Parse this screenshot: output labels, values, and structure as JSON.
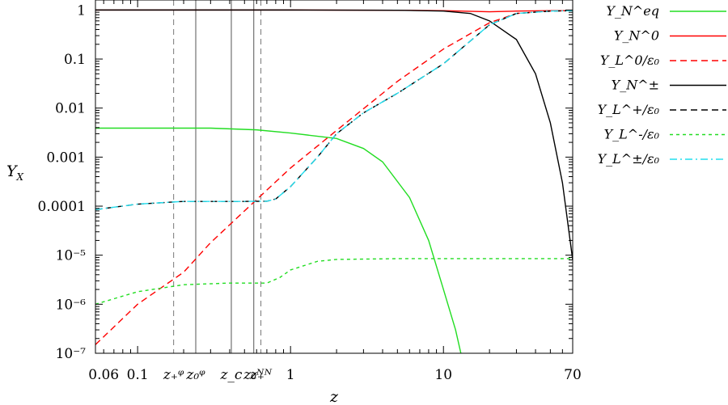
{
  "chart_data": {
    "type": "line",
    "xlabel": "z",
    "ylabel": "Y_X",
    "x_scale": "log",
    "y_scale": "log",
    "xlim": [
      0.053,
      70
    ],
    "ylim": [
      1e-07,
      1.6
    ],
    "grid": false,
    "legend_position": "outside-right",
    "x_tick_labels": [
      {
        "x": 0.06,
        "label": "0.06"
      },
      {
        "x": 0.1,
        "label": "0.1"
      },
      {
        "x": 1,
        "label": "1"
      },
      {
        "x": 10,
        "label": "10"
      },
      {
        "x": 70,
        "label": "70"
      }
    ],
    "y_tick_labels": [
      {
        "y": 1,
        "label": "1"
      },
      {
        "y": 0.1,
        "label": "0.1"
      },
      {
        "y": 0.01,
        "label": "0.01"
      },
      {
        "y": 0.001,
        "label": "0.001"
      },
      {
        "y": 0.0001,
        "label": "0.0001"
      },
      {
        "y": 1e-05,
        "label": "10⁻⁵"
      },
      {
        "y": 1e-06,
        "label": "10⁻⁶"
      },
      {
        "y": 1e-07,
        "label": "10⁻⁷"
      }
    ],
    "vertical_markers": [
      {
        "x": 0.172,
        "label": "z₊ᵠ",
        "style": "dashed"
      },
      {
        "x": 0.24,
        "label": "z₀ᵠ",
        "style": "solid"
      },
      {
        "x": 0.41,
        "label": "z_c",
        "style": "solid"
      },
      {
        "x": 0.575,
        "label": "z₀ᴺ",
        "style": "solid"
      },
      {
        "x": 0.64,
        "label": "z₊ᴺ",
        "style": "dashed"
      }
    ],
    "series": [
      {
        "name": "Y_N^eq",
        "color": "#22dd22",
        "dash": "solid",
        "points": [
          [
            0.053,
            0.0039
          ],
          [
            0.1,
            0.0039
          ],
          [
            0.3,
            0.0039
          ],
          [
            0.6,
            0.0036
          ],
          [
            1,
            0.0031
          ],
          [
            2,
            0.0024
          ],
          [
            3,
            0.0015
          ],
          [
            4,
            0.0008
          ],
          [
            6,
            0.00015
          ],
          [
            8,
            2e-05
          ],
          [
            10,
            2e-06
          ],
          [
            12,
            3e-07
          ],
          [
            13,
            1e-07
          ]
        ]
      },
      {
        "name": "Y_N^0",
        "color": "#ff0000",
        "dash": "solid",
        "points": [
          [
            0.053,
            1
          ],
          [
            1,
            1
          ],
          [
            5,
            0.99
          ],
          [
            10,
            0.97
          ],
          [
            20,
            0.92
          ],
          [
            30,
            0.95
          ],
          [
            50,
            0.97
          ],
          [
            70,
            0.97
          ]
        ]
      },
      {
        "name": "Y_L^0/ε₀",
        "color": "#ff0000",
        "dash": "dashed",
        "points": [
          [
            0.053,
            1.5e-07
          ],
          [
            0.1,
            1e-06
          ],
          [
            0.2,
            4.5e-06
          ],
          [
            0.3,
            1.8e-05
          ],
          [
            0.5,
            8e-05
          ],
          [
            1,
            0.0006
          ],
          [
            2,
            0.0035
          ],
          [
            5,
            0.035
          ],
          [
            10,
            0.16
          ],
          [
            20,
            0.55
          ],
          [
            30,
            0.85
          ],
          [
            50,
            0.95
          ],
          [
            70,
            0.97
          ]
        ]
      },
      {
        "name": "Y_N^±",
        "color": "#000000",
        "dash": "solid",
        "points": [
          [
            0.053,
            1
          ],
          [
            1,
            1
          ],
          [
            5,
            0.99
          ],
          [
            10,
            0.95
          ],
          [
            15,
            0.85
          ],
          [
            20,
            0.6
          ],
          [
            30,
            0.25
          ],
          [
            40,
            0.05
          ],
          [
            50,
            0.005
          ],
          [
            60,
            0.0003
          ],
          [
            70,
            8e-06
          ]
        ]
      },
      {
        "name": "Y_L^+/ε₀",
        "color": "#000000",
        "dash": "dashed",
        "points": [
          [
            0.053,
            8.5e-05
          ],
          [
            0.1,
            0.00011
          ],
          [
            0.2,
            0.000125
          ],
          [
            0.5,
            0.000125
          ],
          [
            0.7,
            0.000126
          ],
          [
            0.8,
            0.00014
          ],
          [
            1,
            0.00025
          ],
          [
            1.5,
            0.001
          ],
          [
            2,
            0.003
          ],
          [
            3,
            0.008
          ],
          [
            5,
            0.02
          ],
          [
            10,
            0.08
          ],
          [
            20,
            0.5
          ],
          [
            30,
            0.85
          ],
          [
            50,
            0.95
          ],
          [
            70,
            0.97
          ]
        ]
      },
      {
        "name": "Y_L^-/ε₀",
        "color": "#22dd22",
        "dash": "dotted",
        "points": [
          [
            0.053,
            1e-06
          ],
          [
            0.1,
            1.8e-06
          ],
          [
            0.2,
            2.5e-06
          ],
          [
            0.4,
            2.7e-06
          ],
          [
            0.7,
            2.7e-06
          ],
          [
            0.85,
            3.5e-06
          ],
          [
            1,
            5e-06
          ],
          [
            1.5,
            7.5e-06
          ],
          [
            2,
            8.2e-06
          ],
          [
            5,
            8.5e-06
          ],
          [
            70,
            8.5e-06
          ]
        ]
      },
      {
        "name": "Y_L^±/ε₀",
        "color": "#22ddee",
        "dash": "dashdot",
        "points": [
          [
            0.053,
            8.5e-05
          ],
          [
            0.1,
            0.00011
          ],
          [
            0.2,
            0.000125
          ],
          [
            0.5,
            0.000125
          ],
          [
            0.7,
            0.000126
          ],
          [
            0.8,
            0.00014
          ],
          [
            1,
            0.00025
          ],
          [
            1.5,
            0.001
          ],
          [
            2,
            0.003
          ],
          [
            3,
            0.008
          ],
          [
            5,
            0.02
          ],
          [
            10,
            0.08
          ],
          [
            20,
            0.5
          ],
          [
            30,
            0.85
          ],
          [
            50,
            0.95
          ],
          [
            70,
            0.97
          ]
        ]
      }
    ]
  }
}
